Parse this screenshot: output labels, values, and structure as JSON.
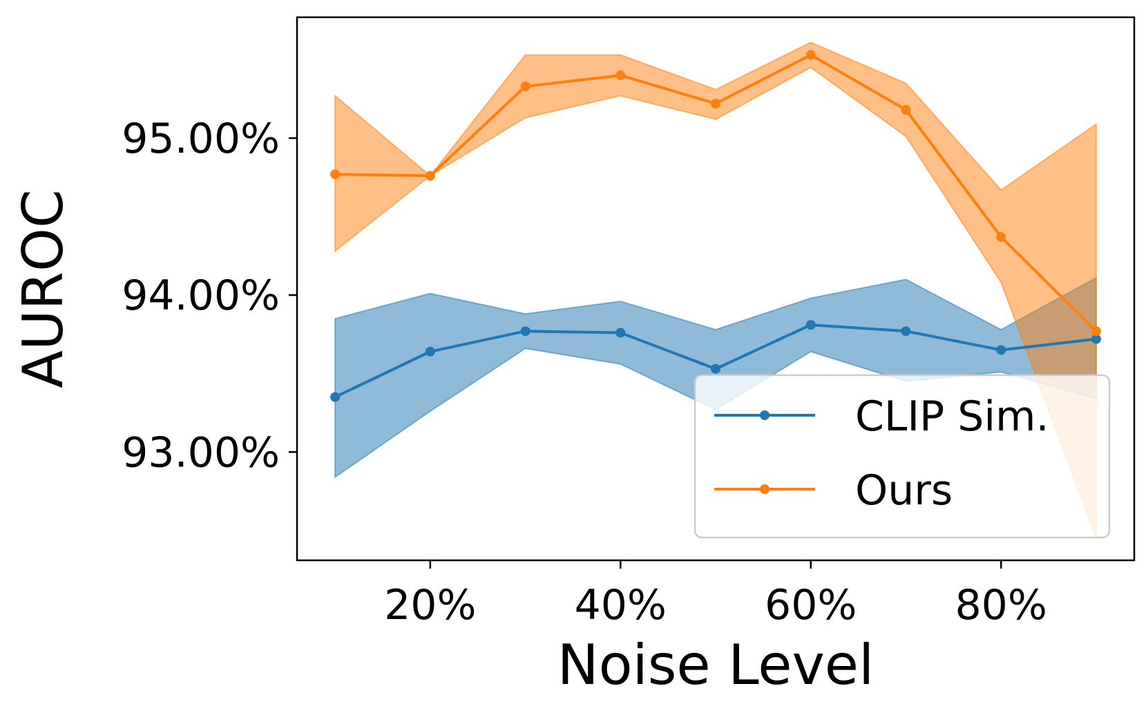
{
  "chart_data": {
    "type": "line",
    "title": "",
    "xlabel": "Noise Level",
    "ylabel": "AUROC",
    "x": [
      0.1,
      0.2,
      0.3,
      0.4,
      0.5,
      0.6,
      0.7,
      0.8,
      0.9
    ],
    "xlim": [
      0.06,
      0.94
    ],
    "ylim": [
      92.31,
      95.77
    ],
    "xticks": [
      {
        "value": 0.2,
        "label": "20%"
      },
      {
        "value": 0.4,
        "label": "40%"
      },
      {
        "value": 0.6,
        "label": "60%"
      },
      {
        "value": 0.8,
        "label": "80%"
      }
    ],
    "yticks": [
      {
        "value": 93.0,
        "label": "93.00%"
      },
      {
        "value": 94.0,
        "label": "94.00%"
      },
      {
        "value": 95.0,
        "label": "95.00%"
      }
    ],
    "grid": false,
    "legend_position": "lower-right",
    "series": [
      {
        "name": "CLIP Sim.",
        "color": "#1f77b4",
        "values": [
          93.35,
          93.64,
          93.77,
          93.76,
          93.53,
          93.81,
          93.77,
          93.65,
          93.72
        ],
        "lower": [
          92.84,
          93.26,
          93.66,
          93.56,
          93.27,
          93.64,
          93.45,
          93.51,
          93.34
        ],
        "upper": [
          93.85,
          94.01,
          93.88,
          93.96,
          93.78,
          93.98,
          94.1,
          93.78,
          94.11
        ]
      },
      {
        "name": "Ours",
        "color": "#ff7f0e",
        "values": [
          94.77,
          94.76,
          95.33,
          95.4,
          95.22,
          95.53,
          95.18,
          94.37,
          93.77
        ],
        "lower": [
          94.28,
          94.76,
          95.13,
          95.27,
          95.12,
          95.45,
          95.01,
          94.08,
          92.45
        ],
        "upper": [
          95.27,
          94.76,
          95.53,
          95.53,
          95.31,
          95.61,
          95.35,
          94.67,
          95.09
        ]
      }
    ]
  }
}
